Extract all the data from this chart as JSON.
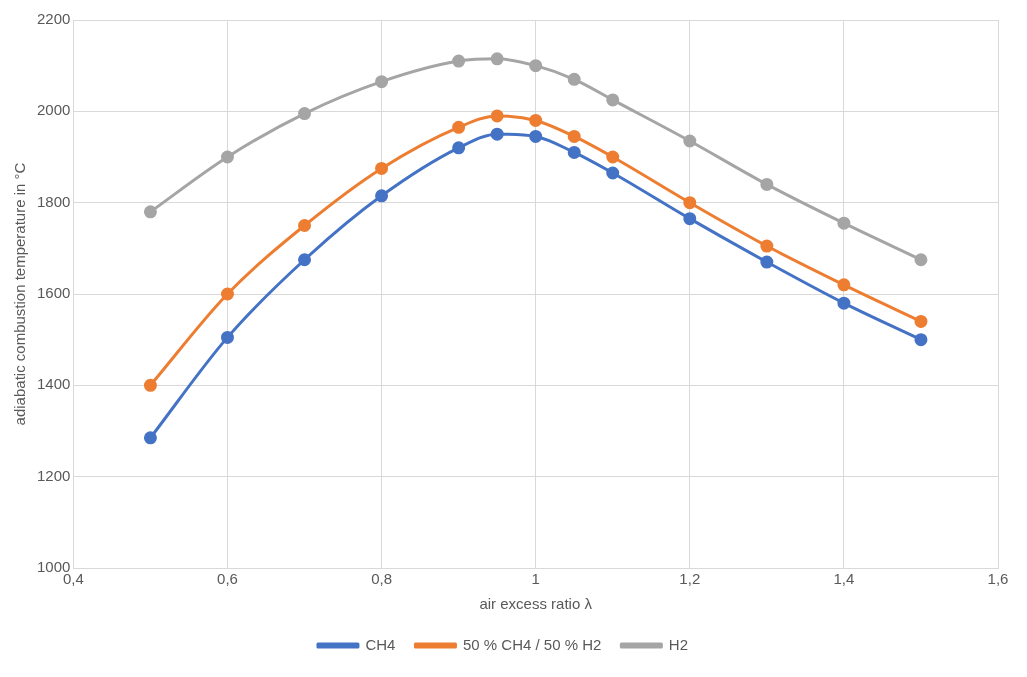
{
  "chart_data": {
    "type": "line",
    "xlabel": "air excess ratio λ",
    "ylabel": "adiabatic combustion temperature in °C",
    "x": [
      0.5,
      0.6,
      0.7,
      0.8,
      0.9,
      0.95,
      1.0,
      1.05,
      1.1,
      1.2,
      1.3,
      1.4,
      1.5
    ],
    "series": [
      {
        "name": "CH4",
        "color": "#4472c4",
        "values": [
          1285,
          1505,
          1675,
          1815,
          1920,
          1950,
          1945,
          1910,
          1865,
          1765,
          1670,
          1580,
          1500
        ]
      },
      {
        "name": "50 % CH4 / 50 % H2",
        "color": "#ed7d31",
        "values": [
          1400,
          1600,
          1750,
          1875,
          1965,
          1990,
          1980,
          1945,
          1900,
          1800,
          1705,
          1620,
          1540
        ]
      },
      {
        "name": "H2",
        "color": "#a5a5a5",
        "values": [
          1780,
          1900,
          1995,
          2065,
          2110,
          2115,
          2100,
          2070,
          2025,
          1935,
          1840,
          1755,
          1675
        ]
      }
    ],
    "xlim": [
      0.4,
      1.6
    ],
    "xticks": [
      {
        "value": 0.4,
        "label": "0,4"
      },
      {
        "value": 0.6,
        "label": "0,6"
      },
      {
        "value": 0.8,
        "label": "0,8"
      },
      1,
      {
        "value": 1.2,
        "label": "1,2"
      },
      {
        "value": 1.4,
        "label": "1,4"
      },
      {
        "value": 1.6,
        "label": "1,6"
      }
    ],
    "ylim": [
      1000,
      2200
    ],
    "yticks": [
      1000,
      1200,
      1400,
      1600,
      1800,
      2000,
      2200
    ],
    "grid": true,
    "legend": "bottom",
    "marker": "circle",
    "line_style": "solid"
  }
}
